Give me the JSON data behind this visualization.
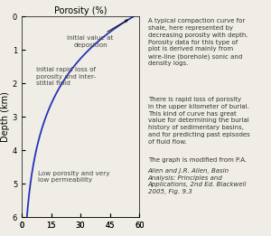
{
  "title": "Porosity (%)",
  "ylabel": "Depth (km)",
  "xlim": [
    0,
    60
  ],
  "ylim": [
    6,
    0
  ],
  "xticks": [
    0,
    15,
    30,
    45,
    60
  ],
  "yticks": [
    0,
    1,
    2,
    3,
    4,
    5,
    6
  ],
  "porosity_0": 57,
  "decay_const": 0.51,
  "curve_color": "#2233bb",
  "bg_color": "#f0ede6",
  "annotation1_text": "Initial rapid loss of\nporosity and inter-\nstitial fluid",
  "annotation2_text": "Initial value at\ndeposition",
  "annotation3_text": "Low porosity and very\nlow permeability",
  "right_text_p1": "A typical compaction curve for\nshale, here represented by\ndecreasing porosity with depth.\nPorosity data for this type of\nplot is derived mainly from\nwire-line (borehole) sonic and\ndensity logs.",
  "right_text_p2": "There is rapid loss of porosity\nin the upper kilometer of burial.\nThis kind of curve has great\nvalue for determining the burial\nhistory of sedimentary basins,\nand for predicting past episodes\nof fluid flow.",
  "right_text_p3_normal": "The graph is modified from P.A.\n",
  "right_text_p3_italic": "Allen and J.R. Allen, Basin\nAnalysis: Principles and\nApplications, 2nd Ed. Blackwell\n2005, Fig. 9.3",
  "figsize": [
    3.0,
    2.61
  ],
  "dpi": 100
}
